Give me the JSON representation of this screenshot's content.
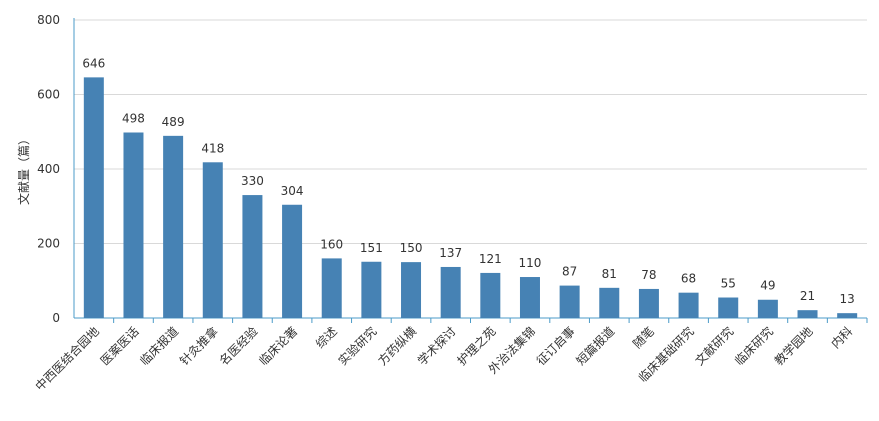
{
  "chart_data": {
    "type": "bar",
    "title": "",
    "xlabel": "",
    "ylabel": "文献量（篇）",
    "ylim": [
      0,
      800
    ],
    "yticks": [
      0,
      200,
      400,
      600,
      800
    ],
    "grid": true,
    "legend": "none",
    "bar_color": "#4682b4",
    "categories": [
      "中西医结合园地",
      "医案医话",
      "临床报道",
      "针灸推拿",
      "名医经验",
      "临床论著",
      "综述",
      "实验研究",
      "方药纵横",
      "学术探讨",
      "护理之苑",
      "外治法集锦",
      "征订启事",
      "短篇报道",
      "随笔",
      "临床基础研究",
      "文献研究",
      "临床研究",
      "教学园地",
      "内科"
    ],
    "values": [
      646,
      498,
      489,
      418,
      330,
      304,
      160,
      151,
      150,
      137,
      121,
      110,
      87,
      81,
      78,
      68,
      55,
      49,
      21,
      13
    ]
  }
}
